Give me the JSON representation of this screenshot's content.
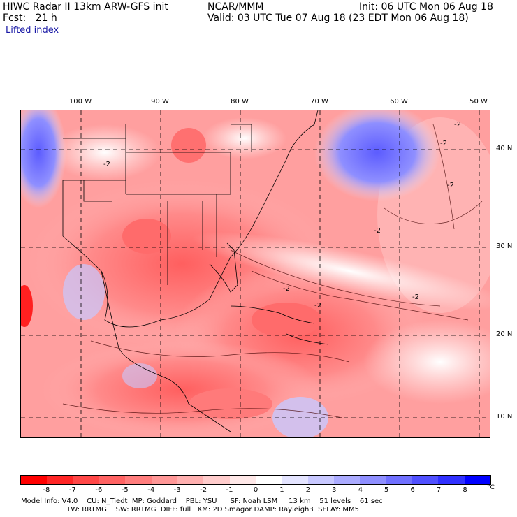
{
  "header": {
    "line1_left": "HIWC Radar II 13km ARW-GFS init",
    "line1_center": "NCAR/MMM",
    "line1_right": "Init: 06 UTC Mon 06 Aug 18",
    "line2_left": "Fcst:   21 h",
    "line2_right": "Valid: 03 UTC Tue 07 Aug 18 (23 EDT Mon 06 Aug 18)",
    "field": "Lifted index"
  },
  "map": {
    "longitude_labels": [
      "100 W",
      "90 W",
      "80 W",
      "70 W",
      "60 W",
      "50 W"
    ],
    "latitude_labels": [
      "40 N",
      "30 N",
      "20 N",
      "10 N"
    ],
    "contour_label": "-2"
  },
  "colorbar": {
    "unit": "°C",
    "ticks": [
      "-8",
      "-7",
      "-6",
      "-5",
      "-4",
      "-3",
      "-2",
      "-1",
      "0",
      "1",
      "2",
      "3",
      "4",
      "5",
      "6",
      "7",
      "8"
    ],
    "colors": [
      "#ff0000",
      "#ff2525",
      "#ff4747",
      "#ff6363",
      "#ff7d7d",
      "#ff9797",
      "#ffb0b0",
      "#ffcccc",
      "#ffe8e8",
      "#ffffff",
      "#e4e4ff",
      "#c8c8ff",
      "#ababff",
      "#8f8fff",
      "#7070ff",
      "#5050ff",
      "#3030ff",
      "#0000ff"
    ]
  },
  "footer": {
    "line1": "Model Info: V4.0    CU: N_Tiedt  MP: Goddard    PBL: YSU      SF: Noah LSM     13 km    51 levels    61 sec",
    "line2": "                     LW: RRTMG    SW: RRTMG  DIFF: full   KM: 2D Smagor DAMP: Rayleigh3  SFLAY: MM5"
  }
}
